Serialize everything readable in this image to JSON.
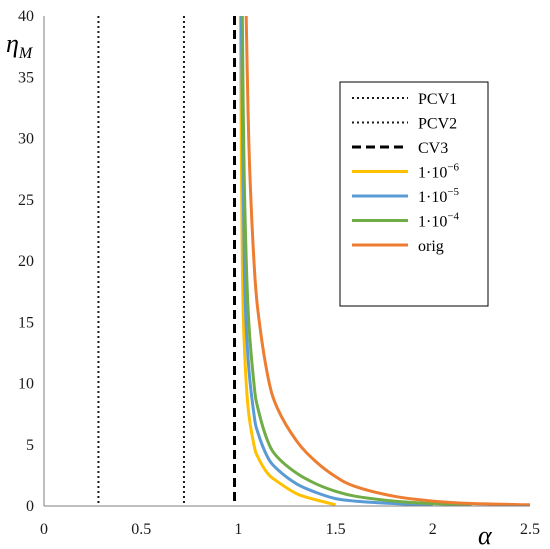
{
  "chart_data": {
    "type": "line",
    "title": "",
    "xlabel": "α",
    "ylabel": "ηM",
    "ylabel_main": "η",
    "ylabel_sub": "M",
    "xlim": [
      0,
      2.5
    ],
    "ylim": [
      0,
      40
    ],
    "xticks": [
      0,
      0.5,
      1,
      1.5,
      2,
      2.5
    ],
    "xtick_labels": [
      "0",
      "0.5",
      "1",
      "1.5",
      "2",
      "2.5"
    ],
    "yticks": [
      0,
      5,
      10,
      15,
      20,
      25,
      30,
      35,
      40
    ],
    "ytick_labels": [
      "0",
      "5",
      "10",
      "15",
      "20",
      "25",
      "30",
      "35",
      "40"
    ],
    "grid": false,
    "legend_position": "top-right",
    "vertical_lines": [
      {
        "name": "PCV1",
        "x": 0.28,
        "style": "dotted",
        "color": "#1a1a1a"
      },
      {
        "name": "PCV2",
        "x": 0.72,
        "style": "dotted",
        "color": "#1a1a1a"
      },
      {
        "name": "CV3",
        "x": 0.98,
        "style": "dashed",
        "color": "#000000"
      }
    ],
    "series": [
      {
        "name": "1·10",
        "exponent": "−6",
        "color": "#FFC000",
        "x": [
          1.01,
          1.02,
          1.03,
          1.05,
          1.08,
          1.1,
          1.15,
          1.2,
          1.3,
          1.4,
          1.5
        ],
        "y": [
          40,
          20,
          13.3,
          8,
          5,
          4,
          2.67,
          2,
          1.0,
          0.5,
          0.1
        ]
      },
      {
        "name": "1·10",
        "exponent": "−5",
        "color": "#5B9BD5",
        "x": [
          1.015,
          1.03,
          1.05,
          1.08,
          1.1,
          1.15,
          1.2,
          1.3,
          1.4,
          1.5,
          1.6,
          1.8,
          2.0
        ],
        "y": [
          40,
          20,
          12,
          7.5,
          6,
          4,
          3,
          1.8,
          1.1,
          0.6,
          0.4,
          0.2,
          0.1
        ]
      },
      {
        "name": "1·10",
        "exponent": "−4",
        "color": "#70AD47",
        "x": [
          1.02,
          1.03,
          1.05,
          1.08,
          1.1,
          1.15,
          1.2,
          1.3,
          1.4,
          1.5,
          1.6,
          1.8,
          2.0,
          2.2
        ],
        "y": [
          40,
          26.7,
          16,
          10,
          8,
          5.33,
          4,
          2.67,
          1.8,
          1.2,
          0.8,
          0.4,
          0.2,
          0.1
        ]
      },
      {
        "name": "orig",
        "color": "#ED7D31",
        "x": [
          1.04,
          1.05,
          1.06,
          1.08,
          1.1,
          1.15,
          1.2,
          1.3,
          1.4,
          1.5,
          1.6,
          1.8,
          2.0,
          2.2,
          2.5
        ],
        "y": [
          40,
          32,
          26.7,
          20,
          16,
          10.7,
          8,
          5.3,
          3.6,
          2.4,
          1.6,
          0.8,
          0.4,
          0.2,
          0.1
        ]
      }
    ]
  }
}
